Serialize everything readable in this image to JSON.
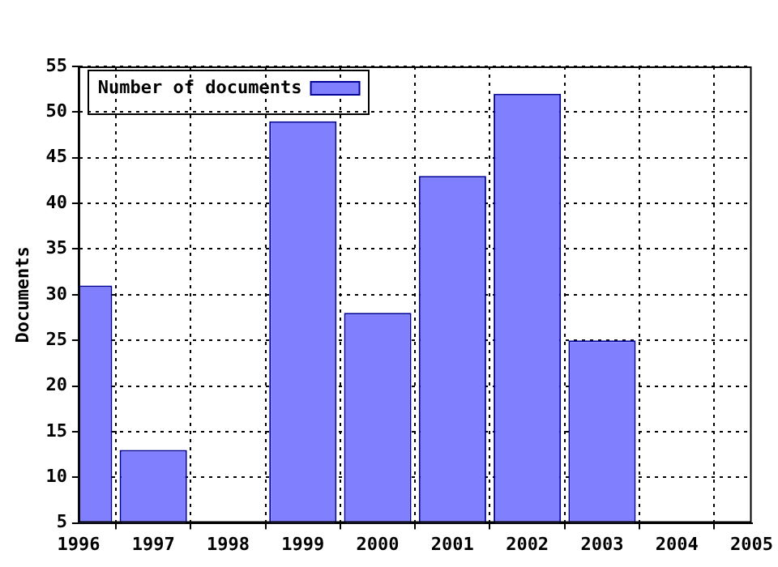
{
  "chart_data": {
    "type": "bar",
    "x": [
      1996,
      1997,
      1998,
      1999,
      2000,
      2001,
      2002,
      2003
    ],
    "series": [
      {
        "name": "Number of documents",
        "color": "#8080ff",
        "values": [
          31,
          13,
          null,
          49,
          28,
          43,
          52,
          25
        ]
      }
    ],
    "ylabel": "Documents",
    "xlim": [
      1996,
      2005
    ],
    "xticks": [
      1996,
      1997,
      1998,
      1999,
      2000,
      2001,
      2002,
      2003,
      2004,
      2005
    ],
    "ylim": [
      5,
      55
    ],
    "yticks": [
      5,
      10,
      15,
      20,
      25,
      30,
      35,
      40,
      45,
      50,
      55
    ],
    "grid": true,
    "legend": "top left"
  }
}
